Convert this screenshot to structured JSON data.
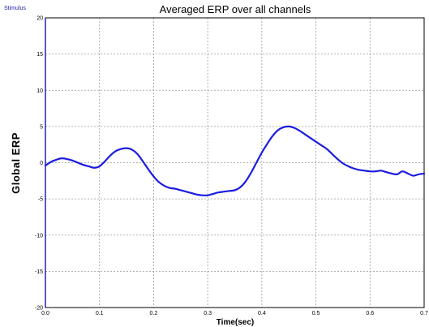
{
  "chart_data": {
    "type": "line",
    "title": "Averaged ERP over all channels",
    "xlabel": "Time(sec)",
    "ylabel": "Global ERP",
    "marker_label": "Stimulus",
    "xlim": [
      0.0,
      0.7
    ],
    "ylim": [
      -20,
      20
    ],
    "x_ticks": [
      "0.0",
      "0.1",
      "0.2",
      "0.3",
      "0.4",
      "0.5",
      "0.6",
      "0.7"
    ],
    "y_ticks": [
      "20",
      "15",
      "10",
      "5",
      "0",
      "-5",
      "-10",
      "-15",
      "-20"
    ],
    "grid": true,
    "colors": {
      "series": "#1b1be0",
      "stimulus": "#2020c0",
      "grid": "#9a9a9a"
    },
    "series": [
      {
        "x": [
          0.0,
          0.01,
          0.02,
          0.03,
          0.04,
          0.05,
          0.06,
          0.07,
          0.08,
          0.09,
          0.1,
          0.11,
          0.12,
          0.13,
          0.14,
          0.15,
          0.16,
          0.17,
          0.18,
          0.19,
          0.2,
          0.21,
          0.22,
          0.23,
          0.24,
          0.25,
          0.26,
          0.27,
          0.28,
          0.29,
          0.3,
          0.31,
          0.32,
          0.33,
          0.34,
          0.35,
          0.36,
          0.37,
          0.38,
          0.39,
          0.4,
          0.41,
          0.42,
          0.43,
          0.44,
          0.45,
          0.46,
          0.47,
          0.48,
          0.49,
          0.5,
          0.51,
          0.52,
          0.53,
          0.54,
          0.55,
          0.56,
          0.57,
          0.58,
          0.59,
          0.6,
          0.61,
          0.62,
          0.63,
          0.64,
          0.65,
          0.66,
          0.67,
          0.68,
          0.69,
          0.7
        ],
        "values": [
          -0.4,
          0.1,
          0.4,
          0.6,
          0.5,
          0.3,
          0.0,
          -0.3,
          -0.5,
          -0.7,
          -0.5,
          0.2,
          1.0,
          1.6,
          1.9,
          2.0,
          1.8,
          1.2,
          0.2,
          -0.9,
          -1.9,
          -2.7,
          -3.2,
          -3.5,
          -3.6,
          -3.8,
          -4.0,
          -4.2,
          -4.4,
          -4.5,
          -4.5,
          -4.3,
          -4.1,
          -4.0,
          -3.9,
          -3.8,
          -3.4,
          -2.6,
          -1.4,
          0.0,
          1.4,
          2.6,
          3.7,
          4.5,
          4.9,
          5.0,
          4.8,
          4.4,
          3.9,
          3.4,
          2.9,
          2.4,
          1.9,
          1.2,
          0.5,
          -0.1,
          -0.5,
          -0.8,
          -1.0,
          -1.1,
          -1.2,
          -1.2,
          -1.1,
          -1.3,
          -1.5,
          -1.6,
          -1.2,
          -1.5,
          -1.8,
          -1.6,
          -1.5
        ]
      }
    ]
  }
}
